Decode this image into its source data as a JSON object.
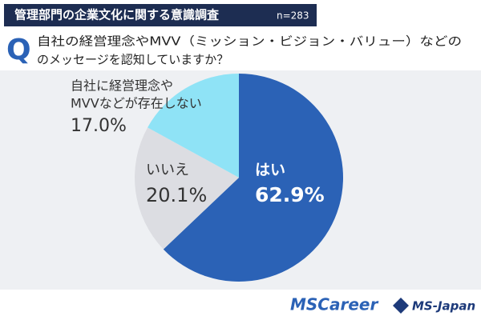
{
  "chart_data": {
    "type": "pie",
    "title": "管理部門の企業文化に関する意識調査",
    "subtitle": "n=283",
    "question_mark": "Q",
    "question": [
      "自社の経営理念やMVV（ミッション・ビジョン・バリュー）などの",
      "のメッセージを認知していますか？"
    ],
    "categories": [
      "はい",
      "いいえ",
      [
        "自社に経営理念や",
        "MVVなどが存在しない"
      ]
    ],
    "values": [
      62.9,
      20.1,
      17.0
    ],
    "value_labels": [
      "62.9%",
      "20.1%",
      "17.0%"
    ],
    "colors": [
      "#2b62b6",
      "#dcdde2",
      "#8fe3f6"
    ]
  },
  "logos": [
    "MSCareer",
    "MS-Japan"
  ]
}
